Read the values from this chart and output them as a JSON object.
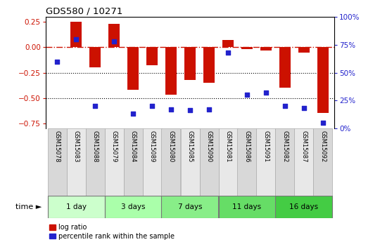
{
  "title": "GDS580 / 10271",
  "samples": [
    "GSM15078",
    "GSM15083",
    "GSM15088",
    "GSM15079",
    "GSM15084",
    "GSM15089",
    "GSM15080",
    "GSM15085",
    "GSM15090",
    "GSM15081",
    "GSM15086",
    "GSM15091",
    "GSM15082",
    "GSM15087",
    "GSM15092"
  ],
  "log_ratio": [
    0.0,
    0.25,
    -0.2,
    0.23,
    -0.42,
    -0.18,
    -0.47,
    -0.32,
    -0.35,
    0.07,
    -0.02,
    -0.03,
    -0.4,
    -0.05,
    -0.65
  ],
  "percentile_rank": [
    60,
    80,
    20,
    78,
    13,
    20,
    17,
    16,
    17,
    68,
    30,
    32,
    20,
    18,
    5
  ],
  "groups": [
    {
      "label": "1 day",
      "indices": [
        0,
        1,
        2
      ]
    },
    {
      "label": "3 days",
      "indices": [
        3,
        4,
        5
      ]
    },
    {
      "label": "7 days",
      "indices": [
        6,
        7,
        8
      ]
    },
    {
      "label": "11 days",
      "indices": [
        9,
        10,
        11
      ]
    },
    {
      "label": "16 days",
      "indices": [
        12,
        13,
        14
      ]
    }
  ],
  "bar_color": "#cc1100",
  "dot_color": "#2222cc",
  "ref_line_color": "#cc1100",
  "dotted_line_color": "#000000",
  "ylim_left": [
    -0.8,
    0.3
  ],
  "ylim_right": [
    0,
    100
  ],
  "yticks_left": [
    0.25,
    0.0,
    -0.25,
    -0.5,
    -0.75
  ],
  "yticks_right": [
    100,
    75,
    50,
    25,
    0
  ],
  "bar_width": 0.6,
  "group_colors": [
    "#ccffcc",
    "#aaffaa",
    "#88ee88",
    "#66dd66",
    "#44cc44"
  ],
  "label_bg_even": "#d8d8d8",
  "label_bg_odd": "#e8e8e8"
}
